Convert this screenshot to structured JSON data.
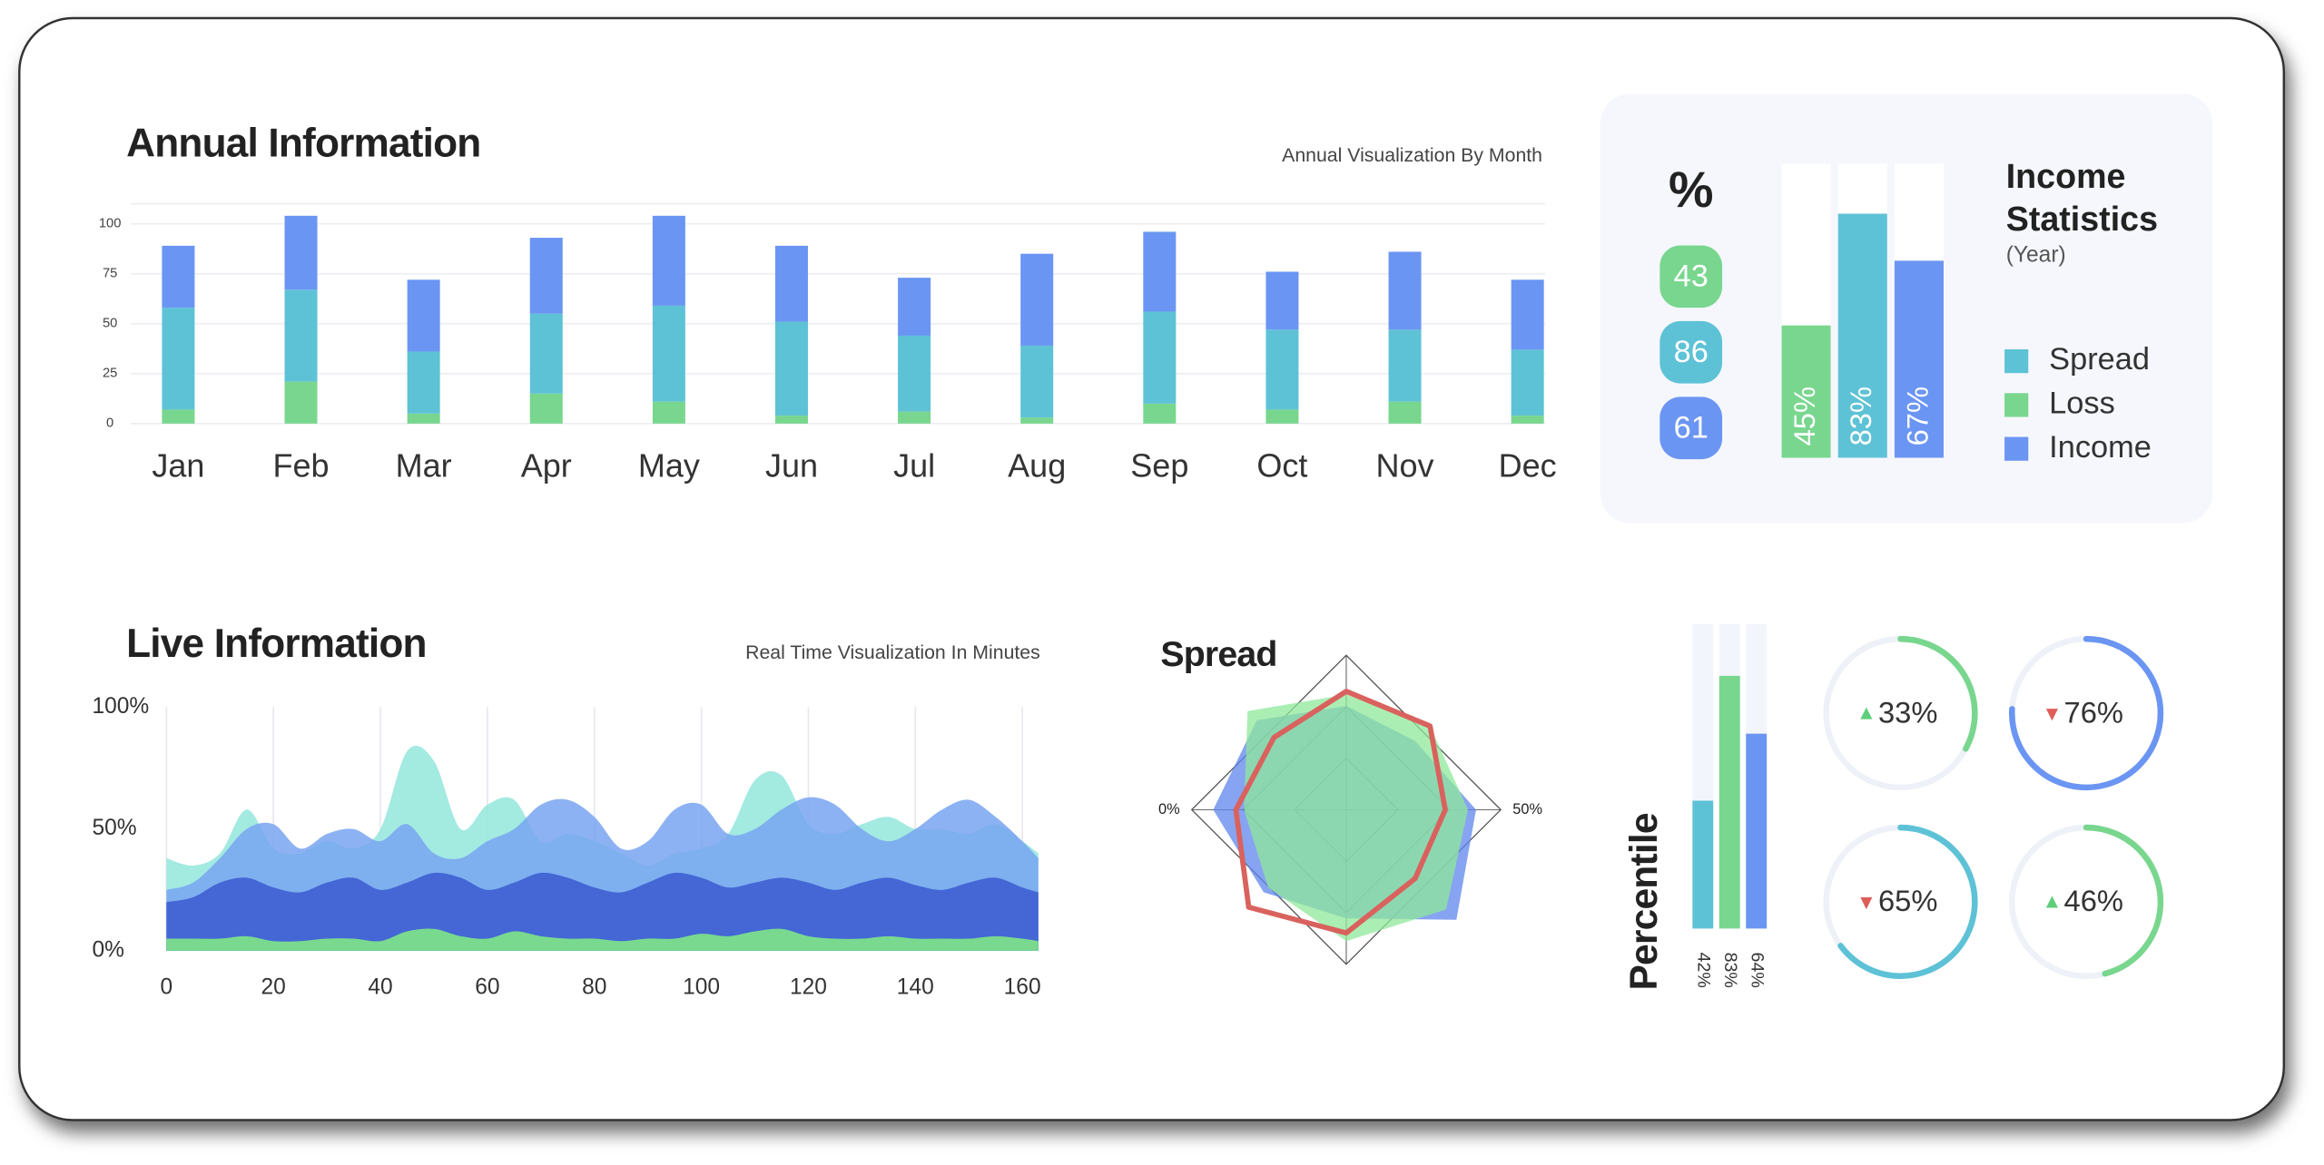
{
  "chart_data": [
    {
      "type": "bar",
      "stacked": true,
      "title": "Annual Information",
      "subtitle": "Annual Visualization By Month",
      "categories": [
        "Jan",
        "Feb",
        "Mar",
        "Apr",
        "May",
        "Jun",
        "Jul",
        "Aug",
        "Sep",
        "Oct",
        "Nov",
        "Dec"
      ],
      "series": [
        {
          "color": "#79d68e",
          "values": [
            7,
            21,
            5,
            15,
            11,
            4,
            6,
            3,
            10,
            7,
            11,
            4
          ]
        },
        {
          "color": "#5ec2d6",
          "values": [
            51,
            46,
            31,
            40,
            48,
            47,
            38,
            36,
            46,
            40,
            36,
            33
          ]
        },
        {
          "color": "#6b95f2",
          "values": [
            31,
            37,
            36,
            38,
            45,
            38,
            29,
            46,
            40,
            29,
            39,
            35
          ]
        }
      ],
      "ylim": [
        0,
        110
      ],
      "yticks": [
        0,
        25,
        50,
        75,
        100
      ],
      "grid": true
    },
    {
      "type": "bar",
      "title": "Income Statistics",
      "subtitle": "(Year)",
      "unit_label": "%",
      "badges": [
        43,
        86,
        61
      ],
      "values": [
        45,
        83,
        67
      ],
      "value_labels": [
        "45%",
        "83%",
        "67%"
      ],
      "colors": [
        "#79d68e",
        "#5ec2d6",
        "#6b95f2"
      ],
      "legend": [
        {
          "name": "Spread",
          "color": "#5ec2d6"
        },
        {
          "name": "Loss",
          "color": "#79d68e"
        },
        {
          "name": "Income",
          "color": "#6b95f2"
        }
      ],
      "ylim": [
        0,
        100
      ]
    },
    {
      "type": "area",
      "title": "Live Information",
      "subtitle": "Real Time Visualization In Minutes",
      "x": [
        0,
        5,
        10,
        15,
        20,
        25,
        30,
        35,
        40,
        45,
        50,
        55,
        60,
        65,
        70,
        75,
        80,
        85,
        90,
        95,
        100,
        105,
        110,
        115,
        120,
        125,
        130,
        135,
        140,
        145,
        150,
        155,
        160,
        163
      ],
      "series": [
        {
          "color": "#93e6dc",
          "values": [
            38,
            35,
            40,
            58,
            42,
            40,
            45,
            42,
            50,
            82,
            78,
            50,
            60,
            62,
            45,
            48,
            45,
            40,
            35,
            40,
            42,
            48,
            70,
            72,
            52,
            48,
            52,
            55,
            50,
            50,
            48,
            52,
            45,
            40
          ]
        },
        {
          "color": "#78a4f1",
          "values": [
            25,
            28,
            38,
            50,
            52,
            42,
            48,
            50,
            45,
            52,
            40,
            38,
            45,
            50,
            60,
            62,
            55,
            42,
            45,
            58,
            60,
            48,
            50,
            58,
            63,
            60,
            50,
            45,
            50,
            58,
            62,
            55,
            45,
            38
          ]
        },
        {
          "color": "#3a5bd0",
          "values": [
            20,
            22,
            28,
            30,
            26,
            24,
            28,
            30,
            25,
            28,
            32,
            30,
            25,
            28,
            32,
            30,
            26,
            24,
            28,
            32,
            30,
            26,
            28,
            30,
            28,
            25,
            28,
            30,
            27,
            25,
            28,
            30,
            26,
            24
          ]
        },
        {
          "color": "#79d98f",
          "values": [
            5,
            5,
            5,
            6,
            4,
            4,
            5,
            5,
            4,
            8,
            9,
            6,
            5,
            8,
            6,
            5,
            5,
            4,
            5,
            5,
            7,
            6,
            8,
            9,
            6,
            5,
            5,
            6,
            5,
            5,
            5,
            6,
            5,
            4
          ]
        }
      ],
      "xlim": [
        0,
        163
      ],
      "xticks": [
        0,
        20,
        40,
        60,
        80,
        100,
        120,
        140,
        160
      ],
      "ylim": [
        0,
        100
      ],
      "yticks": [
        {
          "value": 0,
          "label": "0%"
        },
        {
          "value": 50,
          "label": "50%"
        },
        {
          "value": 100,
          "label": "100%"
        }
      ],
      "grid": true
    },
    {
      "type": "radar",
      "title": "Spread",
      "axis_labels": [
        "0%",
        "50%"
      ],
      "rlim": [
        0,
        100
      ],
      "series": [
        {
          "color": "#5f86ee",
          "fill": true,
          "values": [
            64,
            60,
            80,
            96,
            67,
            72,
            82,
            78
          ]
        },
        {
          "color": "#8fe89a",
          "fill": true,
          "values": [
            71,
            73,
            75,
            87,
            81,
            68,
            63,
            86
          ]
        },
        {
          "color": "#d9625e",
          "fill": false,
          "values": [
            73,
            73,
            61,
            60,
            76,
            85,
            68,
            63
          ]
        }
      ]
    },
    {
      "type": "bar",
      "title": "Percentile",
      "values": [
        42,
        83,
        64
      ],
      "value_labels": [
        "42%",
        "83%",
        "64%"
      ],
      "colors": [
        "#5ec2d6",
        "#79d68e",
        "#6b95f2"
      ],
      "ylim": [
        0,
        100
      ]
    },
    {
      "type": "gauge",
      "values": [
        33,
        76,
        65,
        46
      ],
      "value_labels": [
        "33%",
        "76%",
        "65%",
        "46%"
      ],
      "colors": [
        "#79d68e",
        "#6b95f2",
        "#5ec2d6",
        "#79d68e"
      ],
      "trend": [
        "up",
        "down",
        "down",
        "up"
      ],
      "ylim": [
        0,
        100
      ]
    }
  ]
}
